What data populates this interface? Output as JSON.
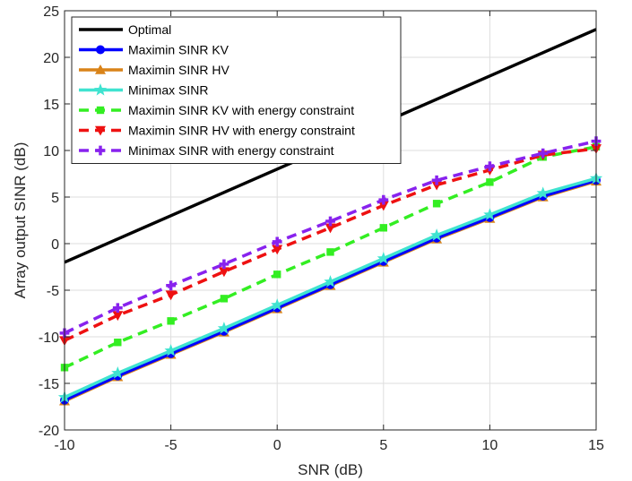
{
  "chart_data": {
    "type": "line",
    "title": "",
    "xlabel": "SNR (dB)",
    "ylabel": "Array output SINR (dB)",
    "xlim": [
      -10,
      15
    ],
    "ylim": [
      -20,
      25
    ],
    "xticks": [
      -10,
      -5,
      0,
      5,
      10,
      15
    ],
    "yticks": [
      -20,
      -15,
      -10,
      -5,
      0,
      5,
      10,
      15,
      20,
      25
    ],
    "x_tick_labels": [
      "-10",
      "-5",
      "0",
      "5",
      "10",
      "15"
    ],
    "y_tick_labels": [
      "-20",
      "-15",
      "-10",
      "-5",
      "0",
      "5",
      "10",
      "15",
      "20",
      "25"
    ],
    "grid": true,
    "legend_position": "top-left",
    "x": [
      -10,
      -7.5,
      -5,
      -2.5,
      0,
      2.5,
      5,
      7.5,
      10,
      12.5,
      15
    ],
    "series": [
      {
        "name": "Optimal",
        "color": "#000000",
        "dash": "solid",
        "marker": "none",
        "values": [
          -2,
          0.5,
          3,
          5.5,
          8,
          10.5,
          13,
          15.5,
          18,
          20.5,
          23
        ]
      },
      {
        "name": "Maximin SINR KV",
        "color": "#0000ff",
        "dash": "solid",
        "marker": "circle",
        "values": [
          -16.8,
          -14.2,
          -11.8,
          -9.4,
          -6.9,
          -4.4,
          -1.9,
          0.6,
          2.8,
          5.1,
          6.8
        ]
      },
      {
        "name": "Maximin SINR HV",
        "color": "#d98319",
        "dash": "solid",
        "marker": "triangle-up",
        "values": [
          -16.9,
          -14.3,
          -11.9,
          -9.5,
          -7.0,
          -4.5,
          -2.0,
          0.5,
          2.7,
          5.0,
          6.7
        ]
      },
      {
        "name": "Minimax SINR",
        "color": "#3fe3d0",
        "dash": "solid",
        "marker": "star",
        "values": [
          -16.5,
          -13.9,
          -11.5,
          -9.1,
          -6.6,
          -4.1,
          -1.6,
          0.9,
          3.1,
          5.4,
          7.0
        ]
      },
      {
        "name": "Maximin SINR KV with energy constraint",
        "color": "#33ee22",
        "dash": "dashed",
        "marker": "square",
        "values": [
          -13.3,
          -10.6,
          -8.3,
          -5.9,
          -3.3,
          -0.9,
          1.7,
          4.3,
          6.6,
          9.3,
          10.4
        ]
      },
      {
        "name": "Maximin SINR HV with energy constraint",
        "color": "#ee1111",
        "dash": "dashed",
        "marker": "triangle-down",
        "values": [
          -10.4,
          -7.7,
          -5.5,
          -3.0,
          -0.6,
          1.7,
          4.1,
          6.3,
          7.9,
          9.5,
          10.2
        ]
      },
      {
        "name": "Minimax SINR with energy constraint",
        "color": "#8822ee",
        "dash": "dashed",
        "marker": "plus",
        "values": [
          -9.6,
          -6.9,
          -4.5,
          -2.2,
          0.2,
          2.4,
          4.7,
          6.8,
          8.3,
          9.7,
          11.0
        ]
      }
    ]
  }
}
